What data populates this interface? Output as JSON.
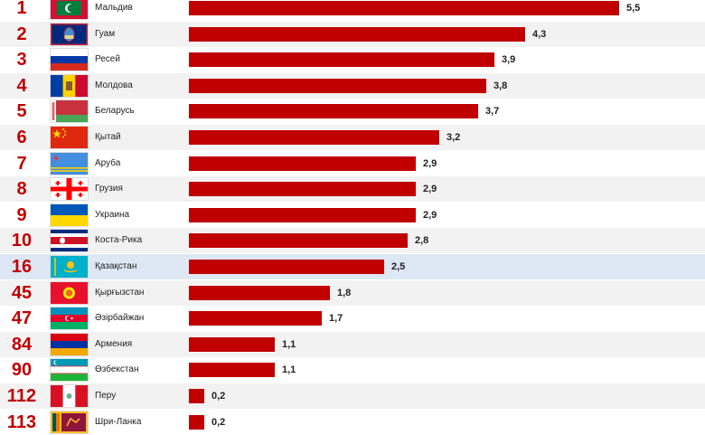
{
  "colors": {
    "bar": "#c00000",
    "rank": "#c00000",
    "row_bg": "#f2f2f2",
    "highlight_bg": "#dde8f4"
  },
  "chart_data": {
    "type": "bar",
    "orientation": "horizontal",
    "title": "",
    "xlabel": "",
    "ylabel": "",
    "xlim": [
      0,
      5.5
    ],
    "grid": false,
    "highlighted_category": "Қазақстан",
    "rows": [
      {
        "rank": "1",
        "country": "Мальдив",
        "value": 5.5,
        "value_label": "5,5",
        "flag": "maldives-flag-icon"
      },
      {
        "rank": "2",
        "country": "Гуам",
        "value": 4.3,
        "value_label": "4,3",
        "flag": "guam-flag-icon"
      },
      {
        "rank": "3",
        "country": "Ресей",
        "value": 3.9,
        "value_label": "3,9",
        "flag": "russia-flag-icon"
      },
      {
        "rank": "4",
        "country": "Молдова",
        "value": 3.8,
        "value_label": "3,8",
        "flag": "moldova-flag-icon"
      },
      {
        "rank": "5",
        "country": "Беларусь",
        "value": 3.7,
        "value_label": "3,7",
        "flag": "belarus-flag-icon"
      },
      {
        "rank": "6",
        "country": "Қытай",
        "value": 3.2,
        "value_label": "3,2",
        "flag": "china-flag-icon"
      },
      {
        "rank": "7",
        "country": "Аруба",
        "value": 2.9,
        "value_label": "2,9",
        "flag": "aruba-flag-icon"
      },
      {
        "rank": "8",
        "country": "Грузия",
        "value": 2.9,
        "value_label": "2,9",
        "flag": "georgia-flag-icon"
      },
      {
        "rank": "9",
        "country": "Украина",
        "value": 2.9,
        "value_label": "2,9",
        "flag": "ukraine-flag-icon"
      },
      {
        "rank": "10",
        "country": "Коста-Рика",
        "value": 2.8,
        "value_label": "2,8",
        "flag": "costa-rica-flag-icon"
      },
      {
        "rank": "16",
        "country": "Қазақстан",
        "value": 2.5,
        "value_label": "2,5",
        "flag": "kazakhstan-flag-icon"
      },
      {
        "rank": "45",
        "country": "Қырғызстан",
        "value": 1.8,
        "value_label": "1,8",
        "flag": "kyrgyzstan-flag-icon"
      },
      {
        "rank": "47",
        "country": "Әзірбайжан",
        "value": 1.7,
        "value_label": "1,7",
        "flag": "azerbaijan-flag-icon"
      },
      {
        "rank": "84",
        "country": "Армения",
        "value": 1.1,
        "value_label": "1,1",
        "flag": "armenia-flag-icon"
      },
      {
        "rank": "90",
        "country": "Өзбекстан",
        "value": 1.1,
        "value_label": "1,1",
        "flag": "uzbekistan-flag-icon"
      },
      {
        "rank": "112",
        "country": "Перу",
        "value": 0.2,
        "value_label": "0,2",
        "flag": "peru-flag-icon"
      },
      {
        "rank": "113",
        "country": "Шри-Ланка",
        "value": 0.2,
        "value_label": "0,2",
        "flag": "sri-lanka-flag-icon"
      }
    ]
  }
}
